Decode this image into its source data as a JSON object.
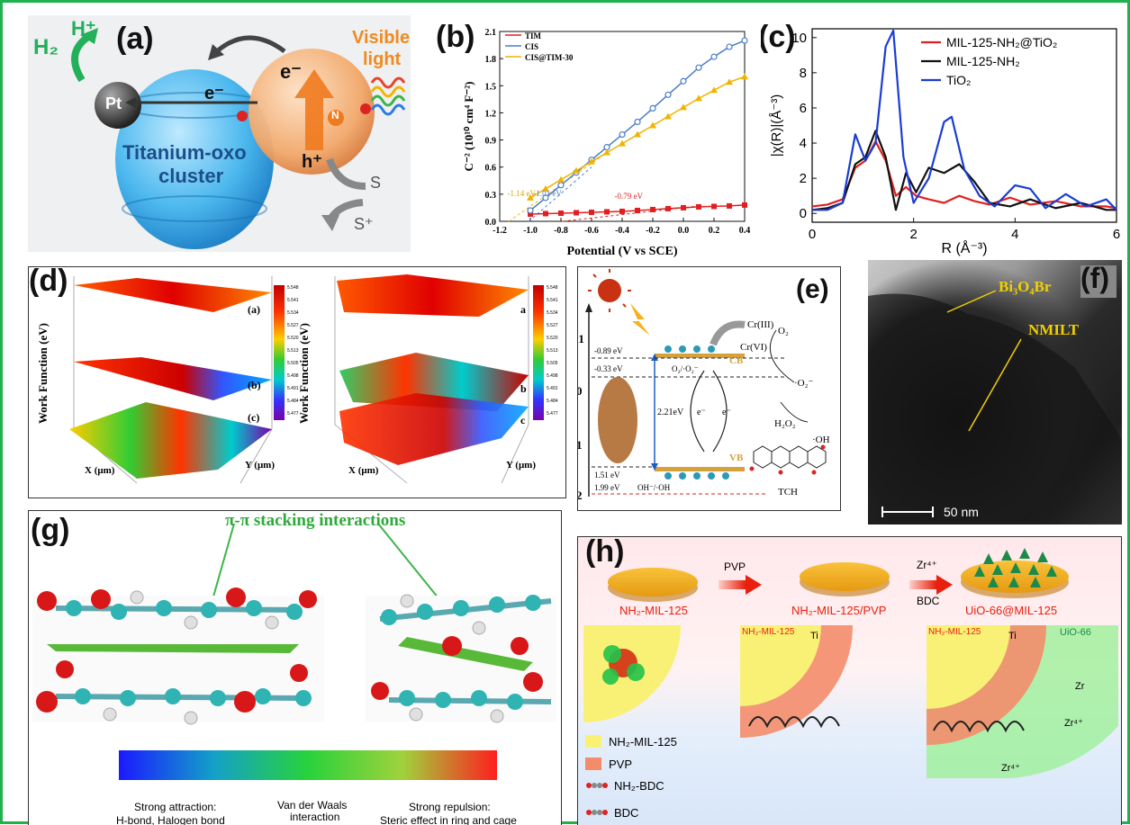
{
  "panels": {
    "a": {
      "label": "(a)",
      "h2": "H₂",
      "hplus": "H⁺",
      "pt": "Pt",
      "visible": "Visible",
      "light": "light",
      "e_top": "e⁻",
      "e_left": "e⁻",
      "h_plus": "h⁺",
      "n": "N",
      "cluster_line1": "Titanium-oxo",
      "cluster_line2": "cluster",
      "s": "S",
      "s_plus": "S⁺"
    },
    "b": {
      "label": "(b)",
      "ylabel": "C⁻² (10¹⁰ cm⁴ F⁻²)",
      "xlabel": "Potential (V vs SCE)",
      "ann_1": "-1.14 eV",
      "ann_2": "-1.01 eV",
      "ann_3": "-0.79 eV"
    },
    "c": {
      "label": "(c)",
      "ylabel": "|χ(R)|(Å⁻³)",
      "xlabel": "R (Å⁻³)"
    },
    "d": {
      "label": "(d)",
      "ylabel": "Work Function (eV)",
      "xaxis": "X (μm)",
      "yaxis": "Y (μm)",
      "layer_a": "(a)",
      "layer_b": "(b)",
      "layer_c": "(c)",
      "layer_a2": "a",
      "layer_b2": "b",
      "layer_c2": "c",
      "scale_ticks": [
        "5.548",
        "5.541",
        "5.534",
        "5.527",
        "5.520",
        "5.513",
        "5.505",
        "5.498",
        "5.491",
        "5.484",
        "5.477"
      ]
    },
    "e": {
      "label": "(e)",
      "cr3": "Cr(III)",
      "cr6": "Cr(VI)",
      "o2": "O₂",
      "o2minus": "·O₂⁻",
      "h2o2": "H₂O₂",
      "oh": "·OH",
      "tch": "TCH",
      "cb": "CB",
      "vb": "VB",
      "lvl_089": "-0.89 eV",
      "lvl_033": "-0.33 eV",
      "o2_pair": "O₂/·O₂⁻",
      "gap": "2.21eV",
      "lvl_151": "1.51 eV",
      "lvl_199": "1.99 eV",
      "oh_pair": "OH⁻/·OH",
      "e1": "e⁻",
      "e2": "e⁻",
      "axis_m1": "-1",
      "axis_0": "0",
      "axis_1": "1",
      "axis_2": "2"
    },
    "f": {
      "label": "(f)",
      "bi": "Bi₃O₄Br",
      "nmilt": "NMILT",
      "scale": "50 nm"
    },
    "g": {
      "label": "(g)",
      "title": "π-π stacking interactions",
      "strong_attr": "Strong attraction:",
      "strong_attr_2": "H-bond, Halogen bond",
      "vdw": "Van der Waals",
      "vdw_2": "interaction",
      "strong_rep": "Strong repulsion:",
      "strong_rep_2": "Steric effect in ring and cage"
    },
    "h": {
      "label": "(h)",
      "pvp_arrow": "PVP",
      "zr_arrow": "Zr⁴⁺",
      "bdc_arrow": "BDC",
      "disk1": "NH₂-MIL-125",
      "disk2": "NH₂-MIL-125/PVP",
      "disk3": "UiO-66@MIL-125",
      "q2_label": "NH₂-MIL-125",
      "q3_label": "NH₂-MIL-125",
      "q3_uio": "UiO-66",
      "ti": "Ti",
      "zr": "Zr",
      "zr4": "Zr⁴⁺",
      "legend": [
        "NH₂-MIL-125",
        "PVP",
        "NH₂-BDC",
        "BDC"
      ]
    }
  },
  "chart_data": [
    {
      "panel": "b",
      "type": "line",
      "xlabel": "Potential (V vs SCE)",
      "ylabel": "C⁻² (10¹⁰ cm⁴ F⁻²)",
      "xlim": [
        -1.2,
        0.4
      ],
      "ylim": [
        0,
        2.1
      ],
      "xticks": [
        -1.2,
        -1.0,
        -0.8,
        -0.6,
        -0.4,
        -0.2,
        0.0,
        0.2,
        0.4
      ],
      "yticks": [
        0.0,
        0.3,
        0.6,
        0.9,
        1.2,
        1.5,
        1.8,
        2.1
      ],
      "series": [
        {
          "name": "TIM",
          "color": "#e02020",
          "x": [
            -1.0,
            -0.9,
            -0.8,
            -0.7,
            -0.6,
            -0.5,
            -0.4,
            -0.3,
            -0.2,
            -0.1,
            0.0,
            0.1,
            0.2,
            0.3,
            0.4
          ],
          "y": [
            0.08,
            0.085,
            0.09,
            0.095,
            0.1,
            0.105,
            0.11,
            0.12,
            0.13,
            0.14,
            0.15,
            0.16,
            0.165,
            0.17,
            0.18
          ]
        },
        {
          "name": "CIS",
          "color": "#4a7cc8",
          "x": [
            -1.0,
            -0.9,
            -0.8,
            -0.7,
            -0.6,
            -0.5,
            -0.4,
            -0.3,
            -0.2,
            -0.1,
            0.0,
            0.1,
            0.2,
            0.3,
            0.4
          ],
          "y": [
            0.12,
            0.26,
            0.4,
            0.54,
            0.68,
            0.82,
            0.96,
            1.1,
            1.25,
            1.4,
            1.55,
            1.7,
            1.82,
            1.93,
            2.0
          ]
        },
        {
          "name": "CIS@TIM-30",
          "color": "#f0b400",
          "x": [
            -1.0,
            -0.9,
            -0.8,
            -0.7,
            -0.6,
            -0.5,
            -0.4,
            -0.3,
            -0.2,
            -0.1,
            0.0,
            0.1,
            0.2,
            0.3,
            0.4
          ],
          "y": [
            0.26,
            0.36,
            0.46,
            0.56,
            0.66,
            0.76,
            0.86,
            0.96,
            1.06,
            1.16,
            1.26,
            1.36,
            1.45,
            1.54,
            1.6
          ]
        }
      ]
    },
    {
      "panel": "c",
      "type": "line",
      "xlabel": "R (Å⁻³)",
      "ylabel": "|χ(R)|(Å⁻³)",
      "xlim": [
        0,
        6
      ],
      "ylim": [
        -0.5,
        10.5
      ],
      "xticks": [
        0,
        2,
        4,
        6
      ],
      "yticks": [
        0,
        2,
        4,
        6,
        8,
        10
      ],
      "series": [
        {
          "name": "MIL-125-NH₂@TiO₂",
          "color": "#e02020",
          "x": [
            0,
            0.3,
            0.6,
            0.85,
            1.05,
            1.25,
            1.45,
            1.65,
            1.85,
            2.05,
            2.3,
            2.6,
            2.9,
            3.2,
            3.5,
            3.9,
            4.3,
            4.8,
            5.3,
            5.8,
            6.0
          ],
          "y": [
            0.4,
            0.5,
            0.8,
            2.6,
            3.0,
            4.1,
            3.0,
            1.0,
            1.5,
            1.0,
            0.8,
            0.6,
            1.0,
            0.7,
            0.5,
            0.9,
            0.5,
            0.7,
            0.4,
            0.4,
            0.3
          ]
        },
        {
          "name": "MIL-125-NH₂",
          "color": "#111111",
          "x": [
            0,
            0.3,
            0.6,
            0.85,
            1.05,
            1.25,
            1.45,
            1.65,
            1.85,
            2.05,
            2.3,
            2.6,
            2.9,
            3.2,
            3.5,
            3.9,
            4.3,
            4.8,
            5.3,
            5.8,
            6.0
          ],
          "y": [
            0.2,
            0.3,
            0.6,
            2.8,
            3.2,
            4.7,
            3.2,
            0.2,
            2.3,
            1.2,
            2.6,
            2.3,
            2.8,
            1.8,
            0.6,
            0.4,
            0.8,
            0.3,
            0.6,
            0.2,
            0.2
          ]
        },
        {
          "name": "TiO₂",
          "color": "#1a3cd4",
          "x": [
            0,
            0.3,
            0.6,
            0.85,
            1.05,
            1.25,
            1.45,
            1.6,
            1.8,
            2.0,
            2.3,
            2.6,
            2.75,
            3.0,
            3.3,
            3.6,
            4.0,
            4.3,
            4.6,
            5.0,
            5.4,
            5.8,
            6.0
          ],
          "y": [
            0.2,
            0.2,
            0.6,
            4.5,
            3.0,
            4.0,
            9.5,
            10.4,
            3.2,
            0.6,
            2.0,
            5.2,
            5.5,
            2.5,
            1.0,
            0.4,
            1.6,
            1.4,
            0.3,
            1.1,
            0.4,
            0.8,
            0.2
          ]
        }
      ]
    }
  ]
}
